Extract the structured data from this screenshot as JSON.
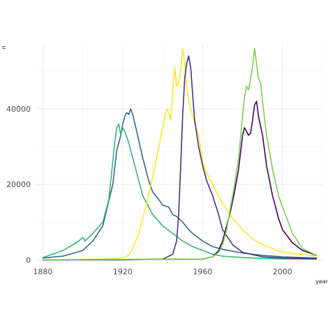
{
  "chart_data": {
    "type": "line",
    "xlabel": "year",
    "ylabel": "n",
    "xlim": [
      1876,
      2020
    ],
    "ylim": [
      -300,
      57000
    ],
    "x_ticks": [
      1880,
      1920,
      1960,
      2000
    ],
    "x_tick_labels": [
      "1880",
      "1920",
      "1960",
      "2000"
    ],
    "y_ticks": [
      0,
      20000,
      40000
    ],
    "y_tick_labels": [
      "0",
      "20000",
      "40000"
    ],
    "grid": true,
    "legend": "none",
    "series": [
      {
        "color": "#31688e",
        "x": [
          1880,
          1890,
          1900,
          1905,
          1910,
          1915,
          1917,
          1919,
          1920,
          1921,
          1922,
          1923,
          1924,
          1925,
          1927,
          1930,
          1933,
          1935,
          1938,
          1940,
          1943,
          1945,
          1947,
          1950,
          1953,
          1955,
          1960,
          1965,
          1970,
          1980,
          1990,
          2000,
          2017
        ],
        "y": [
          500,
          1000,
          2500,
          5000,
          9000,
          20000,
          29000,
          33000,
          36000,
          38000,
          39000,
          38500,
          40000,
          38500,
          34000,
          27000,
          21000,
          18000,
          16000,
          14500,
          14000,
          12000,
          11500,
          10000,
          8000,
          7000,
          5000,
          3500,
          2800,
          1800,
          1200,
          800,
          500
        ]
      },
      {
        "color": "#35b779",
        "x": [
          1880,
          1890,
          1895,
          1898,
          1900,
          1901,
          1905,
          1910,
          1913,
          1915,
          1916,
          1917,
          1918,
          1919,
          1920,
          1921,
          1923,
          1925,
          1928,
          1930,
          1935,
          1940,
          1945,
          1950,
          1955,
          1960,
          1965,
          1970,
          1980,
          1990,
          2000,
          2017
        ],
        "y": [
          600,
          2500,
          4000,
          5000,
          6000,
          5000,
          7000,
          10000,
          16000,
          26000,
          31000,
          35000,
          36000,
          33000,
          35000,
          34000,
          31000,
          27000,
          21000,
          17000,
          12000,
          9000,
          7000,
          5000,
          3500,
          2500,
          1500,
          1000,
          600,
          400,
          300,
          200
        ]
      },
      {
        "color": "#fde725",
        "x": [
          1880,
          1900,
          1910,
          1920,
          1923,
          1925,
          1928,
          1930,
          1932,
          1935,
          1937,
          1940,
          1942,
          1943,
          1944,
          1945,
          1946,
          1947,
          1948,
          1949,
          1950,
          1951,
          1952,
          1953,
          1955,
          1958,
          1960,
          1962,
          1965,
          1970,
          1975,
          1980,
          1985,
          1990,
          1995,
          2000,
          2017
        ],
        "y": [
          0,
          100,
          200,
          500,
          1200,
          3000,
          7000,
          11000,
          15000,
          22000,
          27000,
          35000,
          40000,
          39000,
          37000,
          44000,
          51000,
          46000,
          47000,
          50000,
          56000,
          52000,
          46000,
          42000,
          38000,
          33000,
          26000,
          23000,
          20000,
          15000,
          11000,
          8000,
          5500,
          4000,
          3000,
          2000,
          1000
        ]
      },
      {
        "color": "#46327e",
        "x": [
          1880,
          1920,
          1940,
          1945,
          1947,
          1948,
          1949,
          1950,
          1951,
          1952,
          1953,
          1954,
          1955,
          1956,
          1958,
          1960,
          1962,
          1965,
          1968,
          1970,
          1975,
          1980,
          1990,
          2000,
          2017
        ],
        "y": [
          0,
          0,
          200,
          1500,
          5000,
          12000,
          25000,
          38000,
          48000,
          52000,
          54000,
          51000,
          44000,
          37000,
          30000,
          25000,
          21000,
          17000,
          12000,
          8000,
          4000,
          2000,
          800,
          500,
          300
        ]
      },
      {
        "color": "#440154",
        "x": [
          1880,
          1960,
          1965,
          1968,
          1970,
          1972,
          1974,
          1976,
          1978,
          1980,
          1981,
          1982,
          1983,
          1984,
          1985,
          1986,
          1987,
          1988,
          1990,
          1992,
          1995,
          1998,
          2000,
          2005,
          2010,
          2017
        ],
        "y": [
          0,
          200,
          800,
          2500,
          5000,
          9000,
          13000,
          18000,
          24000,
          33000,
          35000,
          34000,
          33000,
          33500,
          37000,
          41000,
          42000,
          38000,
          33000,
          25000,
          17000,
          11000,
          8000,
          4500,
          2500,
          1200
        ]
      },
      {
        "color": "#7ad151",
        "x": [
          1880,
          1960,
          1965,
          1968,
          1970,
          1972,
          1974,
          1976,
          1978,
          1980,
          1981,
          1982,
          1983,
          1984,
          1985,
          1986,
          1987,
          1988,
          1989,
          1990,
          1992,
          1995,
          1998,
          2000,
          2005,
          2010,
          2017
        ],
        "y": [
          0,
          200,
          800,
          2000,
          4000,
          8000,
          14000,
          20000,
          27000,
          38000,
          43000,
          46000,
          45000,
          48000,
          51000,
          56000,
          52000,
          48000,
          47000,
          42000,
          33000,
          24000,
          17000,
          14000,
          7000,
          3000,
          1200
        ]
      }
    ]
  }
}
